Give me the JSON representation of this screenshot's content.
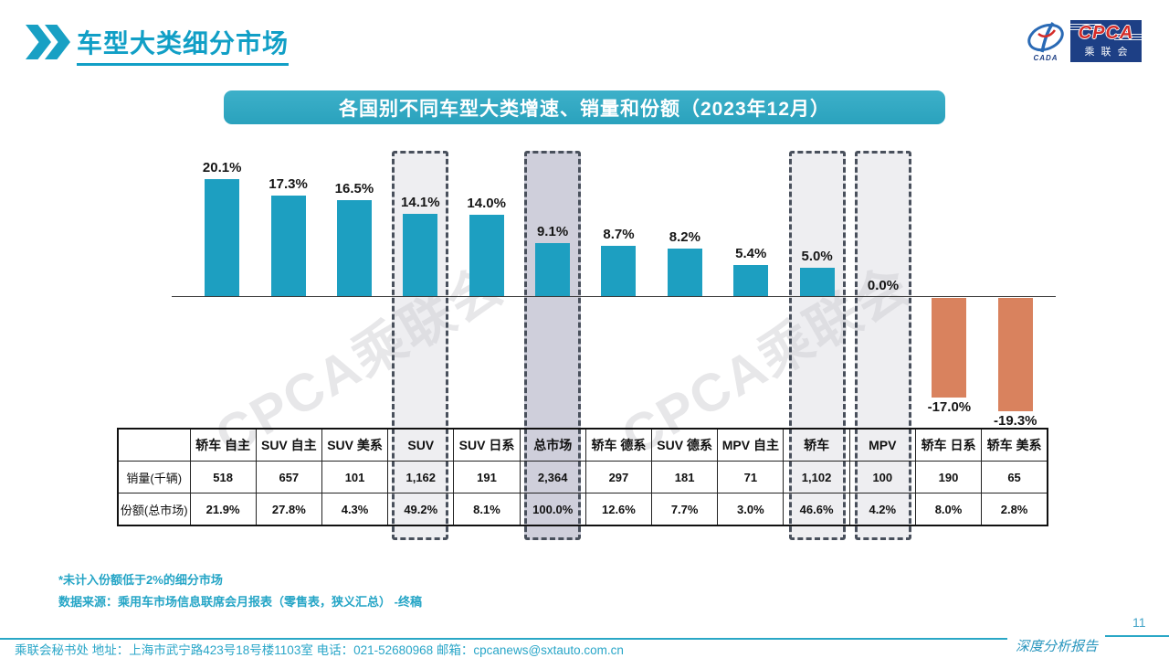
{
  "page": {
    "title": "车型大类细分市场",
    "page_number": "11",
    "report_type_label": "深度分析报告"
  },
  "logo": {
    "cpca": "CPCA",
    "cn": "乘联会",
    "cada": "CADA"
  },
  "watermark_text": "CPCA乘联会",
  "chart_data": {
    "type": "bar",
    "title": "各国别不同车型大类增速、销量和份额（2023年12月）",
    "categories": [
      "轿车 自主",
      "SUV 自主",
      "SUV 美系",
      "SUV",
      "SUV 日系",
      "总市场",
      "轿车 德系",
      "SUV 德系",
      "MPV 自主",
      "轿车",
      "MPV",
      "轿车 日系",
      "轿车 美系"
    ],
    "series": [
      {
        "name": "增速",
        "values": [
          20.1,
          17.3,
          16.5,
          14.1,
          14.0,
          9.1,
          8.7,
          8.2,
          5.4,
          5.0,
          0.0,
          -17.0,
          -19.3
        ],
        "labels": [
          "20.1%",
          "17.3%",
          "16.5%",
          "14.1%",
          "14.0%",
          "9.1%",
          "8.7%",
          "8.2%",
          "5.4%",
          "5.0%",
          "0.0%",
          "-17.0%",
          "-19.3%"
        ]
      },
      {
        "name": "销量(千辆)",
        "values": [
          "518",
          "657",
          "101",
          "1,162",
          "191",
          "2,364",
          "297",
          "181",
          "71",
          "1,102",
          "100",
          "190",
          "65"
        ]
      },
      {
        "name": "份额(总市场)",
        "values": [
          "21.9%",
          "27.8%",
          "4.3%",
          "49.2%",
          "8.1%",
          "100.0%",
          "12.6%",
          "7.7%",
          "3.0%",
          "46.6%",
          "4.2%",
          "8.0%",
          "2.8%"
        ]
      }
    ],
    "highlighted_columns": [
      {
        "index": 3,
        "fill": "rgba(206,206,216,0.35)"
      },
      {
        "index": 5,
        "fill": "rgba(168,168,190,0.55)"
      },
      {
        "index": 9,
        "fill": "rgba(206,206,216,0.35)"
      },
      {
        "index": 10,
        "fill": "rgba(206,206,216,0.35)"
      }
    ],
    "positive_color": "#1d9fc1",
    "negative_color": "#d9825e",
    "ylim": [
      -22,
      24
    ],
    "grid": false,
    "legend": false
  },
  "footnotes": [
    "*未计入份额低于2%的细分市场",
    "数据来源：乘用车市场信息联席会月报表（零售表，狭义汇总） -终稿"
  ],
  "footer": {
    "address": "乘联会秘书处   地址：上海市武宁路423号18号楼1103室  电话：021-52680968   邮箱：cpcanews@sxtauto.com.cn"
  }
}
